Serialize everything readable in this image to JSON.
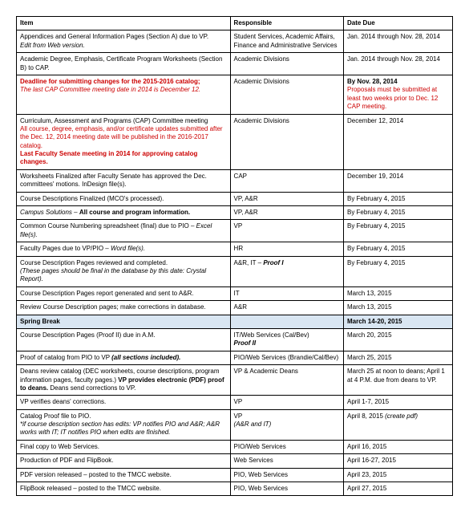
{
  "headers": {
    "item": "Item",
    "responsible": "Responsible",
    "date": "Date Due"
  },
  "rows": [
    {
      "item": [
        {
          "text": "Appendices and General Information Pages (Section A) due to VP."
        },
        {
          "text": "Edit from Web version.",
          "italic": true
        }
      ],
      "resp": [
        {
          "text": "Student Services, Academic Affairs, Finance and Administrative Services"
        }
      ],
      "date": [
        {
          "text": "Jan. 2014 through Nov. 28, 2014"
        }
      ]
    },
    {
      "item": [
        {
          "text": "Academic Degree, Emphasis, Certificate Program Worksheets (Section B) to CAP."
        }
      ],
      "resp": [
        {
          "text": "Academic Divisions"
        }
      ],
      "date": [
        {
          "text": "Jan. 2014 through Nov. 28, 2014"
        }
      ]
    },
    {
      "item": [
        {
          "text": "Deadline for submitting changes for the 2015-2016 catalog;",
          "red": true,
          "bold": true
        },
        {
          "text": "The last CAP Committee meeting date in 2014 is December 12.",
          "red": true,
          "italic": true
        }
      ],
      "resp": [
        {
          "text": "Academic Divisions"
        }
      ],
      "date": [
        {
          "text": "By Nov. 28, 2014",
          "bold": true
        },
        {
          "text": "Proposals must be submitted at least two weeks prior to Dec. 12 CAP meeting.",
          "red": true
        }
      ]
    },
    {
      "item": [
        {
          "text": "Curriculum, Assessment and Programs (CAP) Committee meeting"
        },
        {
          "text": "All course, degree, emphasis, and/or certificate updates submitted after the Dec. 12, 2014 meeting date will be published in the 2016-2017 catalog.",
          "red": true
        },
        {
          "text": "Last Faculty Senate meeting in 2014 for approving catalog changes.",
          "red": true,
          "bold": true
        }
      ],
      "resp": [
        {
          "text": "Academic Divisions"
        }
      ],
      "date": [
        {
          "text": "December 12, 2014"
        }
      ]
    },
    {
      "item": [
        {
          "text": "Worksheets Finalized after Faculty Senate has approved the Dec. committees' motions. InDesign file(s)."
        }
      ],
      "resp": [
        {
          "text": "CAP"
        }
      ],
      "date": [
        {
          "text": "December 19, 2014"
        }
      ]
    },
    {
      "item": [
        {
          "text": "Course Descriptions Finalized (MCO's processed)."
        }
      ],
      "resp": [
        {
          "text": "VP, A&R"
        }
      ],
      "date": [
        {
          "text": "By February 4, 2015"
        }
      ]
    },
    {
      "item": [
        {
          "text": "Campus Solutions",
          "italic": true,
          "inline": true
        },
        {
          "text": " – ",
          "inline": true
        },
        {
          "text": "All course and program information.",
          "bold": true,
          "inline": true
        }
      ],
      "resp": [
        {
          "text": "VP, A&R"
        }
      ],
      "date": [
        {
          "text": "By February 4, 2015"
        }
      ]
    },
    {
      "item": [
        {
          "text": "Common Course Numbering spreadsheet (final) due to PIO – ",
          "inline": true
        },
        {
          "text": "Excel file(s).",
          "italic": true,
          "inline": true
        }
      ],
      "resp": [
        {
          "text": "VP"
        }
      ],
      "date": [
        {
          "text": "By February 4, 2015"
        }
      ]
    },
    {
      "item": [
        {
          "text": "Faculty Pages due to VP/PIO – ",
          "inline": true
        },
        {
          "text": "Word file(s).",
          "italic": true,
          "inline": true
        }
      ],
      "resp": [
        {
          "text": "HR"
        }
      ],
      "date": [
        {
          "text": "By February 4, 2015"
        }
      ]
    },
    {
      "item": [
        {
          "text": "Course Description Pages reviewed and completed."
        },
        {
          "text": "(These pages should be final in the database by this date: Crystal Report).",
          "italic": true
        }
      ],
      "resp": [
        {
          "text": "A&R, IT – ",
          "inline": true
        },
        {
          "text": "Proof I",
          "bold": true,
          "italic": true,
          "inline": true
        }
      ],
      "date": [
        {
          "text": "By February 4, 2015"
        }
      ]
    },
    {
      "item": [
        {
          "text": "Course Description Pages report generated and sent to A&R."
        }
      ],
      "resp": [
        {
          "text": "IT"
        }
      ],
      "date": [
        {
          "text": "March 13, 2015"
        }
      ]
    },
    {
      "item": [
        {
          "text": "Review Course Description pages; make corrections in database."
        }
      ],
      "resp": [
        {
          "text": "A&R"
        }
      ],
      "date": [
        {
          "text": "March 13, 2015"
        }
      ]
    },
    {
      "spring": true,
      "item": [
        {
          "text": "Spring Break"
        }
      ],
      "resp": [
        {
          "text": ""
        }
      ],
      "date": [
        {
          "text": "March 14-20, 2015"
        }
      ]
    },
    {
      "item": [
        {
          "text": "Course Description Pages (Proof II) due in A.M."
        }
      ],
      "resp": [
        {
          "text": "IT/Web Services (Cal/Bev)"
        },
        {
          "text": "Proof II",
          "bold": true,
          "italic": true
        }
      ],
      "date": [
        {
          "text": "March 20, 2015"
        }
      ]
    },
    {
      "item": [
        {
          "text": "Proof of catalog from PIO to VP ",
          "inline": true
        },
        {
          "text": "(all sections included).",
          "bold": true,
          "italic": true,
          "inline": true
        }
      ],
      "resp": [
        {
          "text": "PIO/Web Services (Brandie/Cal/Bev)"
        }
      ],
      "date": [
        {
          "text": "March 25, 2015"
        }
      ]
    },
    {
      "item": [
        {
          "text": "Deans review catalog (DEC worksheets, course descriptions, program information pages, faculty pages.) ",
          "inline": true
        },
        {
          "text": "VP provides electronic (PDF) proof to deans.",
          "bold": true,
          "inline": true
        },
        {
          "text": " Deans send corrections to VP.",
          "inline": true
        }
      ],
      "resp": [
        {
          "text": "VP & Academic Deans"
        }
      ],
      "date": [
        {
          "text": "March 25 at noon to deans; April 1 at 4 P.M. due from deans to VP."
        }
      ]
    },
    {
      "item": [
        {
          "text": "VP verifies deans' corrections."
        }
      ],
      "resp": [
        {
          "text": "VP"
        }
      ],
      "date": [
        {
          "text": "April 1-7, 2015"
        }
      ]
    },
    {
      "item": [
        {
          "text": "Catalog Proof file to PIO."
        },
        {
          "text": "*if course description section has edits: VP notifies PIO and A&R; A&R works with IT; IT notifies PIO when edits are finished.",
          "italic": true
        }
      ],
      "resp": [
        {
          "text": "VP"
        },
        {
          "text": "(A&R and IT)",
          "italic": true
        }
      ],
      "date": [
        {
          "text": "April 8, 2015 ",
          "inline": true
        },
        {
          "text": "(create pdf)",
          "italic": true,
          "inline": true
        }
      ]
    },
    {
      "item": [
        {
          "text": "Final copy to Web Services."
        }
      ],
      "resp": [
        {
          "text": "PIO/Web Services"
        }
      ],
      "date": [
        {
          "text": "April 16, 2015"
        }
      ]
    },
    {
      "item": [
        {
          "text": "Production of PDF and FlipBook."
        }
      ],
      "resp": [
        {
          "text": "Web Services"
        }
      ],
      "date": [
        {
          "text": "April 16-27, 2015"
        }
      ]
    },
    {
      "item": [
        {
          "text": "PDF version released – posted to the TMCC website."
        }
      ],
      "resp": [
        {
          "text": "PIO, Web Services"
        }
      ],
      "date": [
        {
          "text": "April 23, 2015"
        }
      ]
    },
    {
      "item": [
        {
          "text": "FlipBook released – posted to the TMCC website."
        }
      ],
      "resp": [
        {
          "text": "PIO, Web Services"
        }
      ],
      "date": [
        {
          "text": "April 27, 2015"
        }
      ]
    }
  ]
}
